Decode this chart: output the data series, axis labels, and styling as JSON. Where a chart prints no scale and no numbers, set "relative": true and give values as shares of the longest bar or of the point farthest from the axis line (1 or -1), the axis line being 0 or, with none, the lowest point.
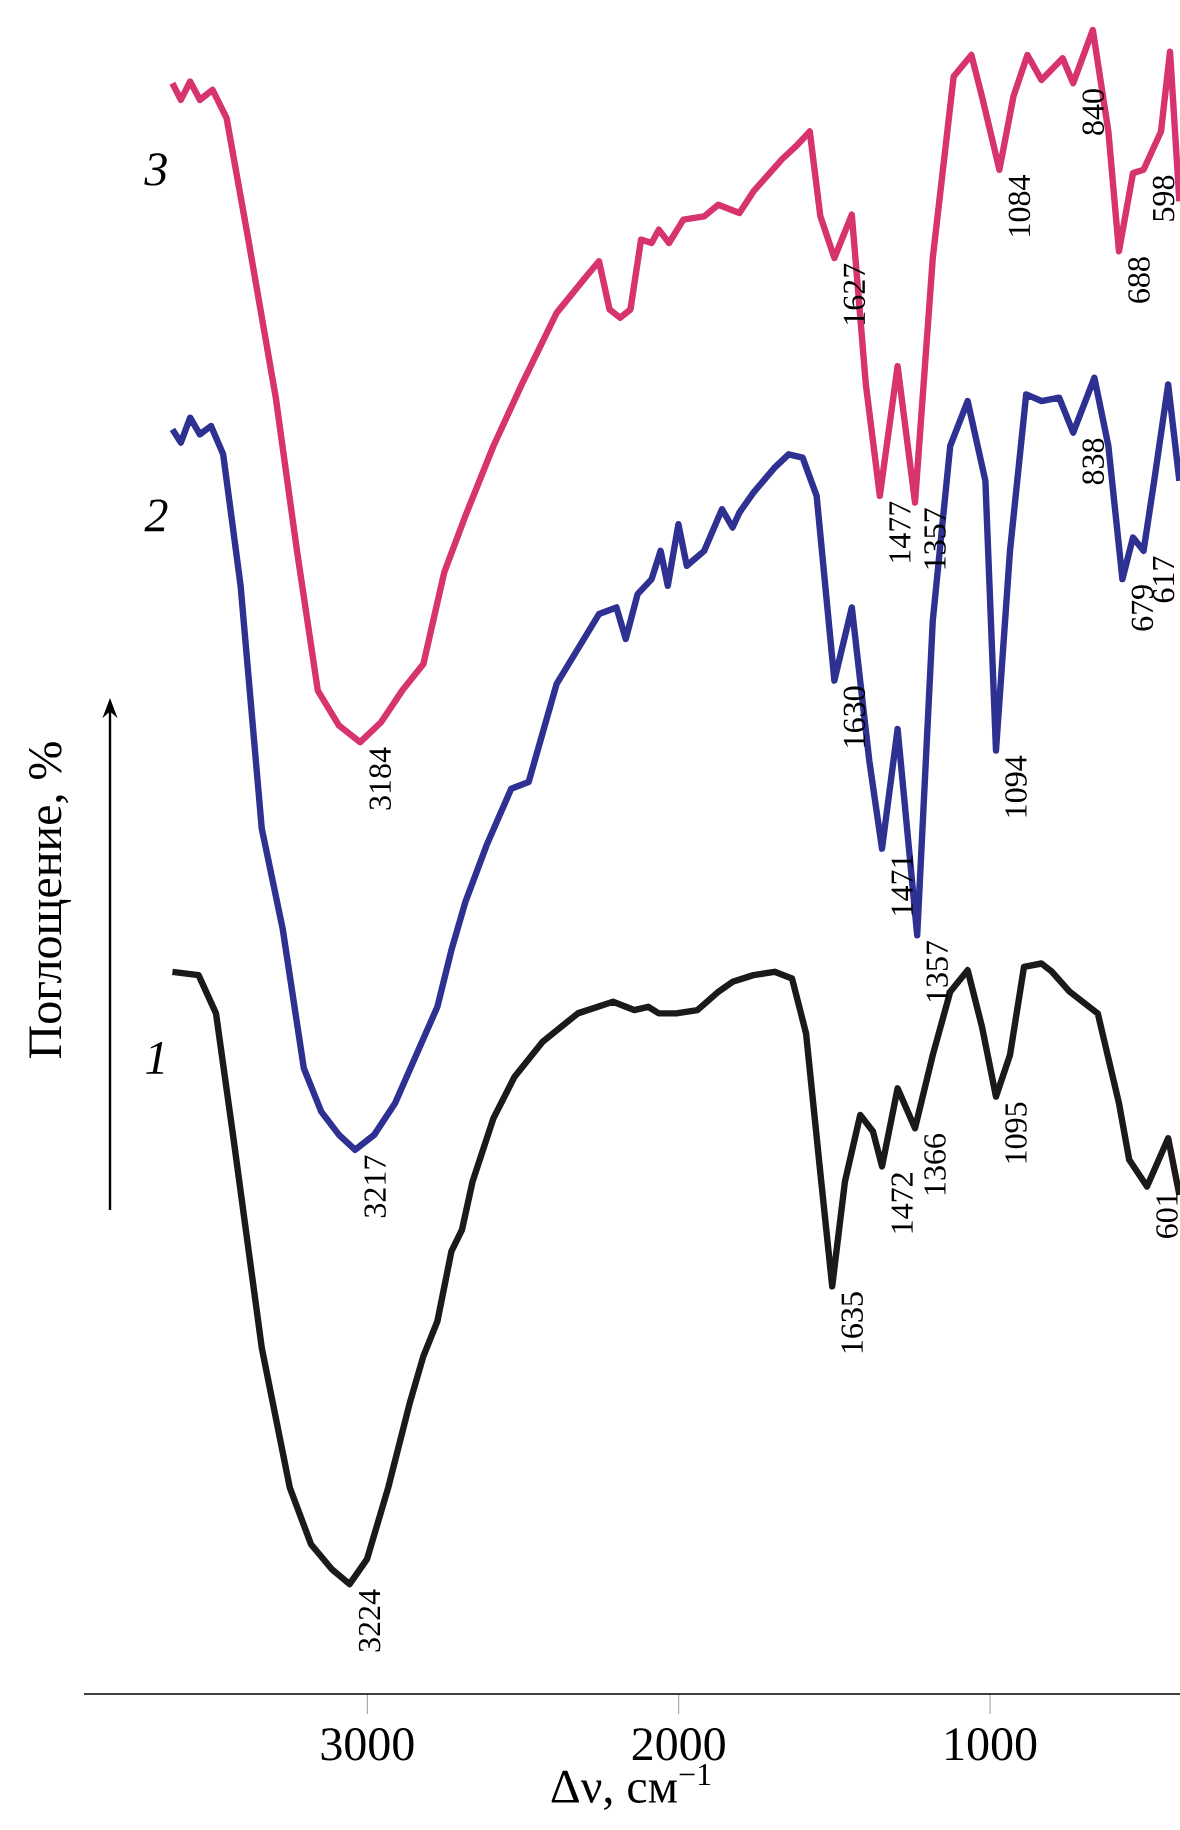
{
  "chart_data": {
    "type": "line",
    "relative": true,
    "xlabel": "Δν, см$^{−1}$",
    "ylabel": "Поглощение, %",
    "xlim": [
      3910,
      390
    ],
    "xticks": [
      3000,
      2000,
      1000
    ],
    "series": [
      {
        "name": "1",
        "color": "#1a1a1a",
        "x": [
          3626,
          3542,
          3486,
          3430,
          3339,
          3249,
          3181,
          3114,
          3057,
          3001,
          2933,
          2865,
          2820,
          2775,
          2730,
          2696,
          2662,
          2595,
          2527,
          2437,
          2324,
          2211,
          2143,
          2098,
          2064,
          2008,
          1940,
          1873,
          1827,
          1760,
          1692,
          1636,
          1591,
          1545,
          1507,
          1466,
          1417,
          1376,
          1347,
          1297,
          1241,
          1184,
          1128,
          1072,
          1026,
          981,
          936,
          891,
          835,
          801,
          744,
          654,
          586,
          553,
          496,
          428,
          392
        ],
        "values": [
          0.434,
          0.432,
          0.409,
          0.334,
          0.208,
          0.124,
          0.09,
          0.075,
          0.066,
          0.081,
          0.124,
          0.174,
          0.203,
          0.224,
          0.266,
          0.279,
          0.308,
          0.346,
          0.371,
          0.392,
          0.409,
          0.416,
          0.411,
          0.413,
          0.409,
          0.409,
          0.411,
          0.422,
          0.428,
          0.432,
          0.434,
          0.43,
          0.397,
          0.313,
          0.245,
          0.308,
          0.348,
          0.338,
          0.317,
          0.364,
          0.34,
          0.384,
          0.422,
          0.435,
          0.401,
          0.359,
          0.384,
          0.437,
          0.439,
          0.434,
          0.422,
          0.409,
          0.355,
          0.321,
          0.305,
          0.334,
          0.3
        ]
      },
      {
        "name": "2",
        "color": "#2e3192",
        "x": [
          3626,
          3599,
          3569,
          3538,
          3502,
          3463,
          3407,
          3339,
          3272,
          3204,
          3148,
          3091,
          3039,
          2978,
          2911,
          2843,
          2775,
          2730,
          2685,
          2617,
          2538,
          2482,
          2392,
          2324,
          2256,
          2200,
          2170,
          2132,
          2087,
          2058,
          2035,
          2001,
          1974,
          1918,
          1861,
          1827,
          1805,
          1760,
          1692,
          1647,
          1602,
          1557,
          1500,
          1444,
          1388,
          1347,
          1297,
          1234,
          1184,
          1128,
          1072,
          1015,
          981,
          936,
          884,
          835,
          778,
          733,
          665,
          620,
          575,
          541,
          507,
          473,
          428,
          392
        ],
        "values": [
          0.76,
          0.752,
          0.767,
          0.757,
          0.762,
          0.745,
          0.666,
          0.52,
          0.46,
          0.376,
          0.35,
          0.336,
          0.327,
          0.336,
          0.355,
          0.384,
          0.413,
          0.447,
          0.476,
          0.51,
          0.544,
          0.548,
          0.607,
          0.628,
          0.649,
          0.653,
          0.634,
          0.661,
          0.67,
          0.687,
          0.666,
          0.703,
          0.678,
          0.687,
          0.712,
          0.701,
          0.71,
          0.722,
          0.737,
          0.745,
          0.743,
          0.72,
          0.609,
          0.653,
          0.561,
          0.508,
          0.58,
          0.456,
          0.645,
          0.75,
          0.777,
          0.729,
          0.567,
          0.687,
          0.781,
          0.777,
          0.779,
          0.758,
          0.791,
          0.75,
          0.67,
          0.695,
          0.687,
          0.729,
          0.787,
          0.729
        ]
      },
      {
        "name": "3",
        "color": "#d6336f",
        "x": [
          3626,
          3599,
          3569,
          3538,
          3497,
          3452,
          3384,
          3294,
          3226,
          3159,
          3091,
          3023,
          2956,
          2888,
          2820,
          2753,
          2685,
          2595,
          2504,
          2392,
          2301,
          2256,
          2222,
          2188,
          2155,
          2121,
          2087,
          2064,
          2031,
          1985,
          1918,
          1873,
          1805,
          1760,
          1670,
          1624,
          1579,
          1545,
          1500,
          1444,
          1399,
          1354,
          1297,
          1241,
          1184,
          1117,
          1060,
          1026,
          970,
          925,
          880,
          835,
          767,
          733,
          670,
          620,
          586,
          541,
          507,
          451,
          422,
          392
        ],
        "values": [
          0.968,
          0.958,
          0.969,
          0.958,
          0.964,
          0.947,
          0.876,
          0.779,
          0.687,
          0.603,
          0.582,
          0.572,
          0.584,
          0.603,
          0.619,
          0.674,
          0.708,
          0.75,
          0.787,
          0.83,
          0.851,
          0.861,
          0.832,
          0.827,
          0.832,
          0.874,
          0.872,
          0.88,
          0.872,
          0.886,
          0.888,
          0.895,
          0.89,
          0.903,
          0.922,
          0.93,
          0.939,
          0.888,
          0.863,
          0.889,
          0.787,
          0.72,
          0.798,
          0.716,
          0.863,
          0.972,
          0.985,
          0.96,
          0.916,
          0.96,
          0.985,
          0.97,
          0.983,
          0.968,
          1.0,
          0.939,
          0.867,
          0.914,
          0.916,
          0.939,
          0.987,
          0.897
        ]
      }
    ],
    "annotations": [
      {
        "text": "3224",
        "x": 3057,
        "y": 0.066
      },
      {
        "text": "1635",
        "x": 1507,
        "y": 0.245
      },
      {
        "text": "1472",
        "x": 1347,
        "y": 0.317
      },
      {
        "text": "1366",
        "x": 1241,
        "y": 0.34
      },
      {
        "text": "1095",
        "x": 981,
        "y": 0.359
      },
      {
        "text": "601",
        "x": 496,
        "y": 0.305
      },
      {
        "text": "3217",
        "x": 3039,
        "y": 0.327
      },
      {
        "text": "1630",
        "x": 1500,
        "y": 0.609
      },
      {
        "text": "1471",
        "x": 1347,
        "y": 0.508
      },
      {
        "text": "1357",
        "x": 1234,
        "y": 0.456
      },
      {
        "text": "1094",
        "x": 981,
        "y": 0.567
      },
      {
        "text": "838",
        "x": 733,
        "y": 0.758
      },
      {
        "text": "679",
        "x": 575,
        "y": 0.67
      },
      {
        "text": "617",
        "x": 507,
        "y": 0.687
      },
      {
        "text": "3184",
        "x": 3023,
        "y": 0.572
      },
      {
        "text": "1627",
        "x": 1500,
        "y": 0.863
      },
      {
        "text": "1477",
        "x": 1354,
        "y": 0.72
      },
      {
        "text": "1357",
        "x": 1241,
        "y": 0.716
      },
      {
        "text": "1084",
        "x": 970,
        "y": 0.916
      },
      {
        "text": "840",
        "x": 733,
        "y": 0.968
      },
      {
        "text": "688",
        "x": 586,
        "y": 0.867
      },
      {
        "text": "598",
        "x": 507,
        "y": 0.916
      }
    ]
  }
}
